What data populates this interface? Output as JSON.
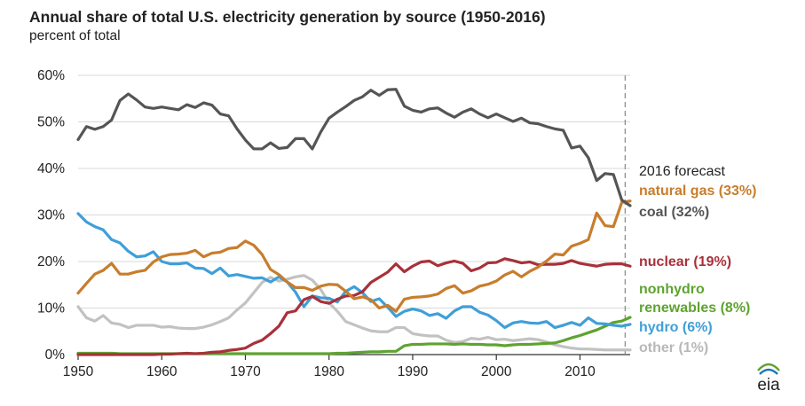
{
  "chart_data": {
    "type": "line",
    "title": "Annual share of total U.S. electricity generation by source (1950-2016)",
    "subtitle": "percent of total",
    "xlabel": "",
    "ylabel": "",
    "xlim": [
      1950,
      2016
    ],
    "ylim": [
      0,
      60
    ],
    "x_ticks": [
      "1950",
      "1960",
      "1970",
      "1980",
      "1990",
      "2000",
      "2010"
    ],
    "y_ticks": [
      "0%",
      "10%",
      "20%",
      "30%",
      "40%",
      "50%",
      "60%"
    ],
    "grid": "horizontal",
    "forecast_label": "2016 forecast",
    "forecast_year": 2016,
    "years": [
      1950,
      1951,
      1952,
      1953,
      1954,
      1955,
      1956,
      1957,
      1958,
      1959,
      1960,
      1961,
      1962,
      1963,
      1964,
      1965,
      1966,
      1967,
      1968,
      1969,
      1970,
      1971,
      1972,
      1973,
      1974,
      1975,
      1976,
      1977,
      1978,
      1979,
      1980,
      1981,
      1982,
      1983,
      1984,
      1985,
      1986,
      1987,
      1988,
      1989,
      1990,
      1991,
      1992,
      1993,
      1994,
      1995,
      1996,
      1997,
      1998,
      1999,
      2000,
      2001,
      2002,
      2003,
      2004,
      2005,
      2006,
      2007,
      2008,
      2009,
      2010,
      2011,
      2012,
      2013,
      2014,
      2015,
      2016
    ],
    "series": [
      {
        "key": "coal",
        "name": "coal (32%)",
        "color": "#555555",
        "values": [
          46.2,
          49.0,
          48.4,
          49.0,
          50.4,
          54.6,
          56.0,
          54.7,
          53.2,
          52.9,
          53.2,
          52.9,
          52.6,
          53.7,
          53.1,
          54.1,
          53.6,
          51.7,
          51.3,
          48.5,
          46.1,
          44.2,
          44.2,
          45.5,
          44.3,
          44.5,
          46.4,
          46.4,
          44.2,
          47.8,
          50.8,
          52.1,
          53.3,
          54.6,
          55.4,
          56.8,
          55.7,
          56.9,
          57.0,
          53.4,
          52.5,
          52.1,
          52.8,
          53.0,
          51.9,
          51.0,
          52.1,
          52.8,
          51.7,
          50.9,
          51.7,
          50.9,
          50.1,
          50.8,
          49.8,
          49.6,
          49.0,
          48.5,
          48.2,
          44.4,
          44.8,
          42.3,
          37.4,
          38.9,
          38.7,
          33.2,
          32.0
        ]
      },
      {
        "key": "natural_gas",
        "name": "natural gas (33%)",
        "color": "#C87D2C",
        "values": [
          13.2,
          15.3,
          17.3,
          18.1,
          19.6,
          17.3,
          17.3,
          17.8,
          18.1,
          19.9,
          21.0,
          21.5,
          21.6,
          21.8,
          22.4,
          21.0,
          21.8,
          22.0,
          22.8,
          23.0,
          24.4,
          23.5,
          21.5,
          18.3,
          17.2,
          15.6,
          14.4,
          14.4,
          13.8,
          14.7,
          15.1,
          15.0,
          13.6,
          12.0,
          12.4,
          11.8,
          10.0,
          10.6,
          9.3,
          11.9,
          12.3,
          12.4,
          12.6,
          13.0,
          14.2,
          14.8,
          13.2,
          13.7,
          14.7,
          15.1,
          15.8,
          17.1,
          17.9,
          16.7,
          17.9,
          18.8,
          20.1,
          21.6,
          21.4,
          23.3,
          23.9,
          24.7,
          30.4,
          27.7,
          27.5,
          32.7,
          33.0
        ]
      },
      {
        "key": "nuclear",
        "name": "nuclear (19%)",
        "color": "#A8313A",
        "values": [
          0,
          0,
          0,
          0,
          0,
          0,
          0,
          0,
          0,
          0,
          0.1,
          0.1,
          0.2,
          0.3,
          0.2,
          0.3,
          0.5,
          0.6,
          0.9,
          1.1,
          1.4,
          2.4,
          3.1,
          4.5,
          6.1,
          9.0,
          9.4,
          11.8,
          12.5,
          11.4,
          11.0,
          11.9,
          12.6,
          12.7,
          13.5,
          15.5,
          16.6,
          17.7,
          19.5,
          17.8,
          19.0,
          19.9,
          20.1,
          19.1,
          19.7,
          20.1,
          19.6,
          18.0,
          18.6,
          19.7,
          19.8,
          20.6,
          20.2,
          19.7,
          19.9,
          19.3,
          19.4,
          19.4,
          19.6,
          20.2,
          19.6,
          19.3,
          19.0,
          19.4,
          19.5,
          19.5,
          19.0
        ]
      },
      {
        "key": "nonhydro_renewables",
        "name": "nonhydro renewables (8%)",
        "color": "#5EA330",
        "values": [
          0.3,
          0.3,
          0.3,
          0.3,
          0.3,
          0.2,
          0.2,
          0.2,
          0.2,
          0.2,
          0.2,
          0.2,
          0.2,
          0.2,
          0.2,
          0.2,
          0.2,
          0.2,
          0.2,
          0.2,
          0.2,
          0.2,
          0.2,
          0.2,
          0.2,
          0.2,
          0.2,
          0.2,
          0.2,
          0.2,
          0.2,
          0.3,
          0.3,
          0.4,
          0.5,
          0.6,
          0.6,
          0.7,
          0.7,
          1.9,
          2.2,
          2.2,
          2.3,
          2.3,
          2.3,
          2.2,
          2.3,
          2.2,
          2.2,
          2.1,
          2.1,
          1.9,
          2.1,
          2.2,
          2.2,
          2.3,
          2.4,
          2.5,
          3.0,
          3.6,
          4.1,
          4.7,
          5.3,
          6.1,
          6.9,
          7.2,
          8.0
        ]
      },
      {
        "key": "hydro",
        "name": "hydro (6%)",
        "color": "#3F9FD8",
        "values": [
          30.3,
          28.5,
          27.5,
          26.8,
          24.7,
          24.0,
          22.2,
          21.0,
          21.2,
          22.1,
          20.0,
          19.5,
          19.5,
          19.7,
          18.6,
          18.5,
          17.4,
          18.6,
          16.9,
          17.2,
          16.8,
          16.4,
          16.5,
          15.6,
          16.7,
          15.6,
          13.4,
          10.3,
          12.6,
          12.2,
          12.1,
          11.3,
          13.6,
          14.6,
          13.3,
          11.4,
          12.0,
          10.2,
          8.2,
          9.3,
          9.8,
          9.4,
          8.4,
          8.8,
          7.8,
          9.4,
          10.3,
          10.3,
          9.1,
          8.5,
          7.3,
          5.8,
          6.8,
          7.1,
          6.8,
          6.7,
          7.1,
          5.8,
          6.3,
          6.9,
          6.3,
          7.9,
          6.7,
          6.6,
          6.3,
          6.1,
          6.5
        ]
      },
      {
        "key": "other",
        "name": "other (1%)",
        "color": "#C2C2C2",
        "values": [
          10.3,
          7.9,
          7.2,
          8.4,
          6.8,
          6.5,
          5.8,
          6.3,
          6.3,
          6.3,
          5.9,
          6.0,
          5.7,
          5.6,
          5.6,
          5.9,
          6.4,
          7.1,
          7.9,
          9.6,
          11.1,
          13.3,
          15.5,
          16.6,
          15.8,
          16.2,
          16.7,
          17.0,
          16.0,
          14.0,
          11.1,
          9.3,
          7.1,
          6.4,
          5.7,
          5.1,
          4.9,
          4.9,
          5.8,
          5.8,
          4.5,
          4.2,
          4.0,
          4.0,
          3.1,
          2.6,
          2.8,
          3.5,
          3.3,
          3.7,
          3.2,
          3.3,
          3.0,
          3.2,
          3.4,
          3.2,
          2.7,
          2.1,
          1.7,
          1.4,
          1.2,
          1.2,
          1.1,
          1.0,
          1.0,
          1.0,
          1.0
        ]
      }
    ],
    "legend_entries": [
      {
        "key": "forecast",
        "text": "2016 forecast",
        "color": "#222222",
        "bold": false
      },
      {
        "key": "natural_gas",
        "text": "natural gas (33%)",
        "color": "#C87D2C",
        "bold": true
      },
      {
        "key": "coal",
        "text": "coal (32%)",
        "color": "#555555",
        "bold": true
      },
      {
        "key": "nuclear",
        "text": "nuclear (19%)",
        "color": "#A8313A",
        "bold": true
      },
      {
        "key": "nonhydro1",
        "text": "nonhydro",
        "color": "#5EA330",
        "bold": true
      },
      {
        "key": "nonhydro2",
        "text": "renewables (8%)",
        "color": "#5EA330",
        "bold": true
      },
      {
        "key": "hydro",
        "text": "hydro (6%)",
        "color": "#3F9FD8",
        "bold": true
      },
      {
        "key": "other",
        "text": "other (1%)",
        "color": "#B8B8B8",
        "bold": true
      }
    ],
    "logo_text": "eia",
    "colors": {
      "grid": "#D9D9D9",
      "axis": "#333333",
      "forecast_line": "#888888",
      "logo_blue": "#1B75BB",
      "logo_green": "#5EA330"
    }
  }
}
